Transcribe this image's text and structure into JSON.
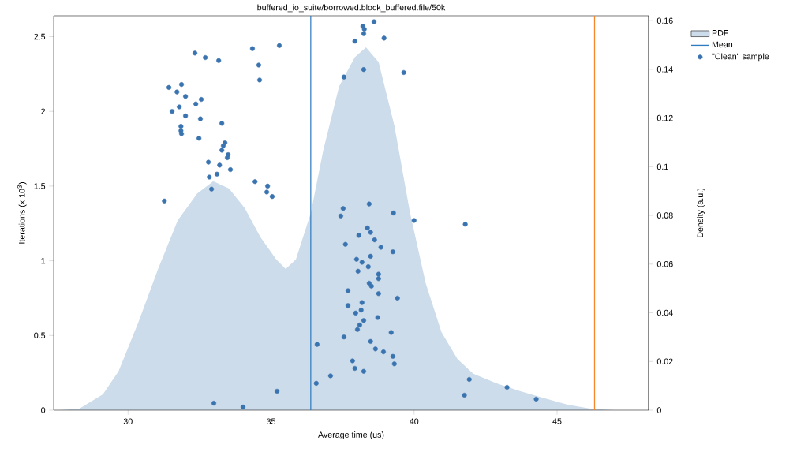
{
  "chart_data": {
    "type": "scatter",
    "title": "buffered_io_suite/borrowed.block_buffered.file/50k",
    "xlabel": "Average time (us)",
    "ylabel": "Iterations (x 10$^{3}$)",
    "y2label": "Density (a.u.)",
    "xlim": [
      27.4,
      48.2
    ],
    "xticks": [
      30,
      35,
      40,
      45
    ],
    "ylim": [
      0,
      2.64
    ],
    "yticks": [
      0,
      0.5,
      1,
      1.5,
      2,
      2.5
    ],
    "y2lim": [
      0,
      0.162
    ],
    "y2ticks": [
      0,
      0.02,
      0.04,
      0.06,
      0.08,
      0.1,
      0.12,
      0.14,
      0.16
    ],
    "legend": "top right",
    "grid": false,
    "series": [
      {
        "name": "PDF",
        "type": "area",
        "axis": "y2",
        "color": "#cddcea",
        "x": [
          27.6,
          28.29,
          29.12,
          29.67,
          30.36,
          31.05,
          31.74,
          32.42,
          32.98,
          33.53,
          34.08,
          34.63,
          35.18,
          35.51,
          35.87,
          36.39,
          36.83,
          37.38,
          37.93,
          38.32,
          38.76,
          39.31,
          39.86,
          40.41,
          40.96,
          41.52,
          42.07,
          42.89,
          43.72,
          44.55,
          45.37,
          46.2,
          47.02
        ],
        "values": [
          0,
          0.0006,
          0.0065,
          0.016,
          0.036,
          0.058,
          0.078,
          0.089,
          0.094,
          0.091,
          0.083,
          0.071,
          0.062,
          0.058,
          0.062,
          0.081,
          0.107,
          0.133,
          0.145,
          0.149,
          0.143,
          0.117,
          0.081,
          0.052,
          0.032,
          0.021,
          0.015,
          0.011,
          0.0078,
          0.0049,
          0.0023,
          0.0006,
          0
        ]
      },
      {
        "name": "Mean",
        "type": "line",
        "color": "#2f7bbf",
        "x": [
          36.39,
          36.39
        ],
        "values": [
          0,
          2.64
        ]
      },
      {
        "name": "\"Clean\" sample",
        "marker": "circle",
        "color": "#3a74b0",
        "x": [
          32.34,
          32.7,
          33.17,
          34.35,
          35.29,
          34.57,
          34.6,
          31.43,
          31.87,
          31.71,
          32.01,
          32.56,
          32.37,
          31.79,
          31.54,
          32.01,
          32.53,
          33.28,
          31.85,
          31.85,
          31.87,
          32.48,
          33.39,
          33.33,
          33.28,
          33.5,
          33.47,
          32.81,
          33.2,
          33.58,
          33.11,
          32.84,
          34.44,
          34.88,
          34.85,
          35.04,
          32.92,
          31.27,
          38.6,
          38.21,
          38.26,
          38.24,
          37.93,
          38.95,
          38.24,
          37.55,
          39.64,
          37.52,
          38.43,
          37.44,
          39.28,
          40.0,
          38.37,
          38.48,
          38.07,
          38.62,
          37.6,
          38.84,
          39.26,
          38.48,
          37.99,
          38.18,
          38.4,
          38.04,
          38.76,
          38.76,
          38.43,
          38.51,
          37.69,
          38.76,
          39.42,
          38.18,
          37.69,
          38.15,
          37.96,
          38.73,
          38.24,
          38.1,
          38.02,
          39.2,
          37.55,
          38.48,
          36.61,
          38.65,
          38.93,
          39.26,
          37.85,
          39.31,
          37.93,
          38.24,
          37.08,
          36.58,
          33.0,
          34.02,
          35.21,
          41.79,
          41.93,
          41.76,
          43.25,
          44.27
        ],
        "values": [
          2.39,
          2.36,
          2.34,
          2.42,
          2.44,
          2.31,
          2.21,
          2.16,
          2.18,
          2.13,
          2.1,
          2.08,
          2.05,
          2.03,
          2.0,
          1.97,
          1.95,
          1.92,
          1.9,
          1.87,
          1.85,
          1.82,
          1.79,
          1.77,
          1.74,
          1.71,
          1.69,
          1.66,
          1.64,
          1.61,
          1.58,
          1.56,
          1.53,
          1.5,
          1.46,
          1.43,
          1.48,
          1.4,
          2.6,
          2.57,
          2.55,
          2.52,
          2.47,
          2.49,
          2.28,
          2.23,
          2.26,
          1.35,
          1.38,
          1.3,
          1.32,
          1.27,
          1.22,
          1.19,
          1.17,
          1.14,
          1.11,
          1.09,
          1.06,
          1.03,
          1.01,
          0.99,
          0.96,
          0.93,
          0.91,
          0.88,
          0.85,
          0.83,
          0.8,
          0.78,
          0.75,
          0.72,
          0.7,
          0.67,
          0.65,
          0.62,
          0.6,
          0.57,
          0.54,
          0.52,
          0.49,
          0.46,
          0.44,
          0.41,
          0.39,
          0.36,
          0.33,
          0.31,
          0.28,
          0.26,
          0.23,
          0.18,
          0.047,
          0.021,
          0.127,
          1.245,
          0.206,
          0.1,
          0.153,
          0.074
        ]
      }
    ],
    "ref_lines": [
      {
        "axis": "x",
        "value": 46.31,
        "color": "#f5862a"
      }
    ]
  }
}
